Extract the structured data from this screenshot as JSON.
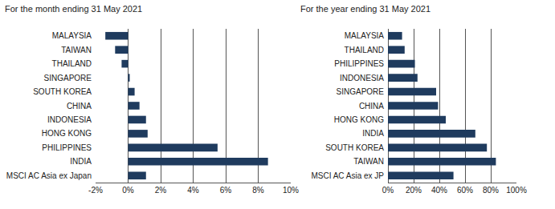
{
  "chart_data": [
    {
      "type": "bar",
      "orientation": "horizontal",
      "grid": true,
      "title": "For the month ending 31 May 2021",
      "categories": [
        "MALAYSIA",
        "TAIWAN",
        "THAILAND",
        "SINGAPORE",
        "SOUTH KOREA",
        "CHINA",
        "INDONESIA",
        "HONG KONG",
        "PHILIPPINES",
        "INDIA",
        "MSCI AC Asia ex Japan"
      ],
      "values": [
        -1.4,
        -0.8,
        -0.4,
        0.1,
        0.4,
        0.7,
        1.1,
        1.2,
        5.5,
        8.6,
        1.1
      ],
      "color": "#1f3b5e",
      "xlim": [
        -2,
        10
      ],
      "xticks": [
        {
          "value": -2,
          "label": "-2%"
        },
        {
          "value": 0,
          "label": "0%"
        },
        {
          "value": 2,
          "label": "2%"
        },
        {
          "value": 4,
          "label": "4%"
        },
        {
          "value": 6,
          "label": "6%"
        },
        {
          "value": 8,
          "label": "8%"
        },
        {
          "value": 10,
          "label": "10%"
        }
      ]
    },
    {
      "type": "bar",
      "orientation": "horizontal",
      "grid": true,
      "title": "For the year ending 31 May 2021",
      "categories": [
        "MALAYSIA",
        "THAILAND",
        "PHILIPPINES",
        "INDONESIA",
        "SINGAPORE",
        "CHINA",
        "HONG KONG",
        "INDIA",
        "SOUTH KOREA",
        "TAIWAN",
        "MSCI AC Asia ex JP"
      ],
      "values": [
        11,
        13,
        21,
        23,
        37.5,
        39,
        45,
        68,
        77,
        84,
        51
      ],
      "color": "#1f3b5e",
      "xlim": [
        0,
        100
      ],
      "xticks": [
        {
          "value": 0,
          "label": "0%"
        },
        {
          "value": 20,
          "label": "20%"
        },
        {
          "value": 40,
          "label": "40%"
        },
        {
          "value": 60,
          "label": "60%"
        },
        {
          "value": 80,
          "label": "80%"
        },
        {
          "value": 100,
          "label": "100%"
        }
      ]
    }
  ]
}
